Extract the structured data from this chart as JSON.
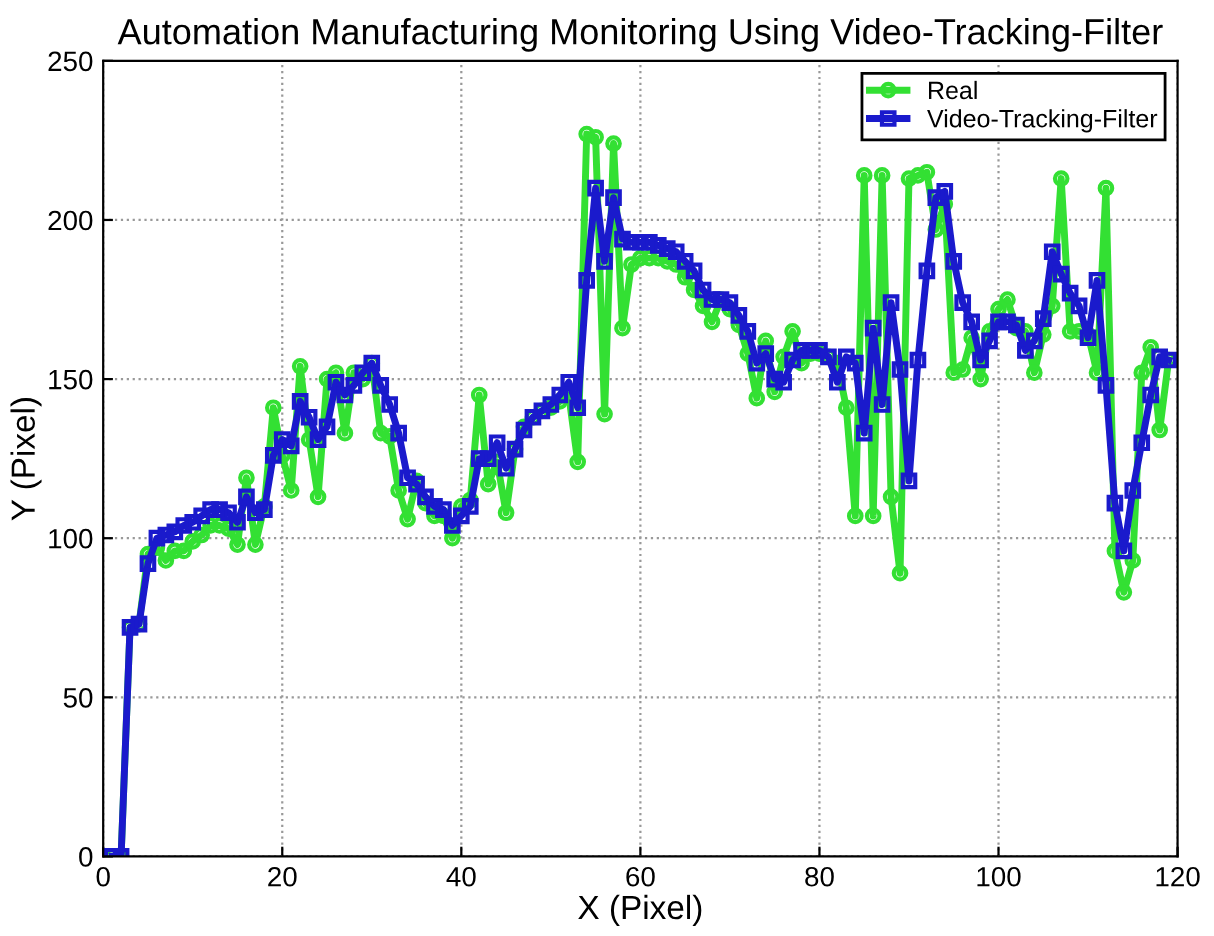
{
  "chart_data": {
    "type": "line",
    "title": "Automation Manufacturing Monitoring Using Video-Tracking-Filter",
    "xlabel": "X (Pixel)",
    "ylabel": "Y (Pixel)",
    "x": [
      1,
      2,
      3,
      4,
      5,
      6,
      7,
      8,
      9,
      10,
      11,
      12,
      13,
      14,
      15,
      16,
      17,
      18,
      19,
      20,
      21,
      22,
      23,
      24,
      25,
      26,
      27,
      28,
      29,
      30,
      31,
      32,
      33,
      34,
      35,
      36,
      37,
      38,
      39,
      40,
      41,
      42,
      43,
      44,
      45,
      46,
      47,
      48,
      49,
      50,
      51,
      52,
      53,
      54,
      55,
      56,
      57,
      58,
      59,
      60,
      61,
      62,
      63,
      64,
      65,
      66,
      67,
      68,
      69,
      70,
      71,
      72,
      73,
      74,
      75,
      76,
      77,
      78,
      79,
      80,
      81,
      82,
      83,
      84,
      85,
      86,
      87,
      88,
      89,
      90,
      91,
      92,
      93,
      94,
      95,
      96,
      97,
      98,
      99,
      100,
      101,
      102,
      103,
      104,
      105,
      106,
      107,
      108,
      109,
      110,
      111,
      112,
      113,
      114,
      115,
      116,
      117,
      118,
      119
    ],
    "series": [
      {
        "name": "Real",
        "color": "#33e033",
        "marker": "circle",
        "values": [
          0,
          0,
          72,
          73,
          95,
          97,
          93,
          96,
          96,
          99,
          101,
          104,
          104,
          103,
          98,
          119,
          98,
          110,
          141,
          126,
          115,
          154,
          131,
          113,
          150,
          152,
          133,
          152,
          150,
          155,
          133,
          132,
          115,
          106,
          118,
          111,
          107,
          107,
          100,
          110,
          112,
          145,
          117,
          124,
          108,
          128,
          135,
          138,
          140,
          141,
          143,
          145,
          124,
          227,
          226,
          139,
          224,
          166,
          186,
          188,
          188,
          188,
          187,
          186,
          182,
          178,
          173,
          168,
          175,
          172,
          167,
          158,
          144,
          162,
          146,
          157,
          165,
          155,
          158,
          158,
          157,
          155,
          141,
          107,
          214,
          107,
          214,
          113,
          89,
          213,
          214,
          215,
          197,
          205,
          152,
          153,
          163,
          150,
          165,
          172,
          175,
          166,
          165,
          152,
          164,
          173,
          213,
          165,
          165,
          164,
          152,
          210,
          96,
          83,
          93,
          152,
          160,
          134,
          156
        ]
      },
      {
        "name": "Video-Tracking-Filter",
        "color": "#1a1acc",
        "marker": "square",
        "values": [
          0,
          0,
          72,
          73,
          92,
          100,
          101,
          102,
          104,
          105,
          107,
          109,
          109,
          108,
          105,
          113,
          108,
          109,
          126,
          131,
          129,
          143,
          138,
          131,
          135,
          149,
          145,
          148,
          152,
          155,
          148,
          142,
          133,
          119,
          117,
          113,
          110,
          109,
          104,
          107,
          110,
          125,
          125,
          130,
          122,
          128,
          134,
          138,
          140,
          142,
          145,
          149,
          141,
          181,
          210,
          187,
          207,
          194,
          193,
          193,
          193,
          192,
          191,
          190,
          187,
          184,
          178,
          175,
          175,
          174,
          170,
          165,
          155,
          158,
          150,
          149,
          156,
          159,
          159,
          159,
          157,
          149,
          157,
          155,
          133,
          166,
          142,
          174,
          153,
          118,
          156,
          184,
          207,
          209,
          187,
          174,
          168,
          156,
          162,
          168,
          168,
          167,
          159,
          162,
          169,
          190,
          183,
          177,
          173,
          163,
          181,
          148,
          111,
          96,
          115,
          130,
          145,
          157,
          156
        ]
      }
    ],
    "xlim": [
      0,
      120
    ],
    "ylim": [
      0,
      250
    ],
    "xticks": [
      0,
      20,
      40,
      60,
      80,
      100,
      120
    ],
    "yticks": [
      0,
      50,
      100,
      150,
      200,
      250
    ],
    "grid": true,
    "legend": "top right",
    "line_style": "solid"
  }
}
